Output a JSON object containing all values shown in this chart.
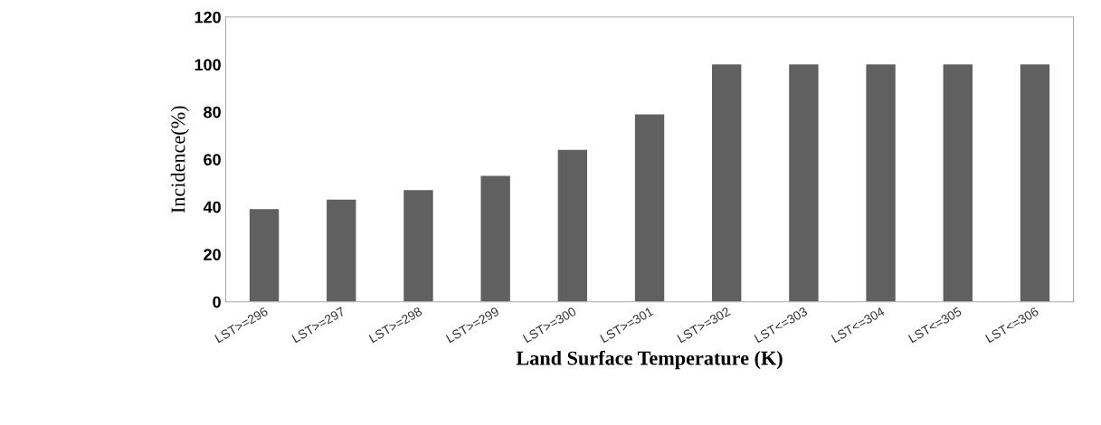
{
  "chart_data": {
    "type": "bar",
    "xlabel": "Land Surface Temperature (K)",
    "ylabel": "Incidence(%)",
    "categories": [
      "LST>=296",
      "LST>=297",
      "LST>=298",
      "LST>=299",
      "LST>=300",
      "LST>=301",
      "LST>=302",
      "LST<=303",
      "LST<=304",
      "LST<=305",
      "LST<=306"
    ],
    "values": [
      39,
      43,
      47,
      53,
      64,
      79,
      100,
      100,
      100,
      100,
      100
    ],
    "color": "#606060",
    "ylim": [
      0,
      120
    ],
    "yticks": [
      0,
      20,
      40,
      60,
      80,
      100,
      120
    ],
    "grid": false
  }
}
